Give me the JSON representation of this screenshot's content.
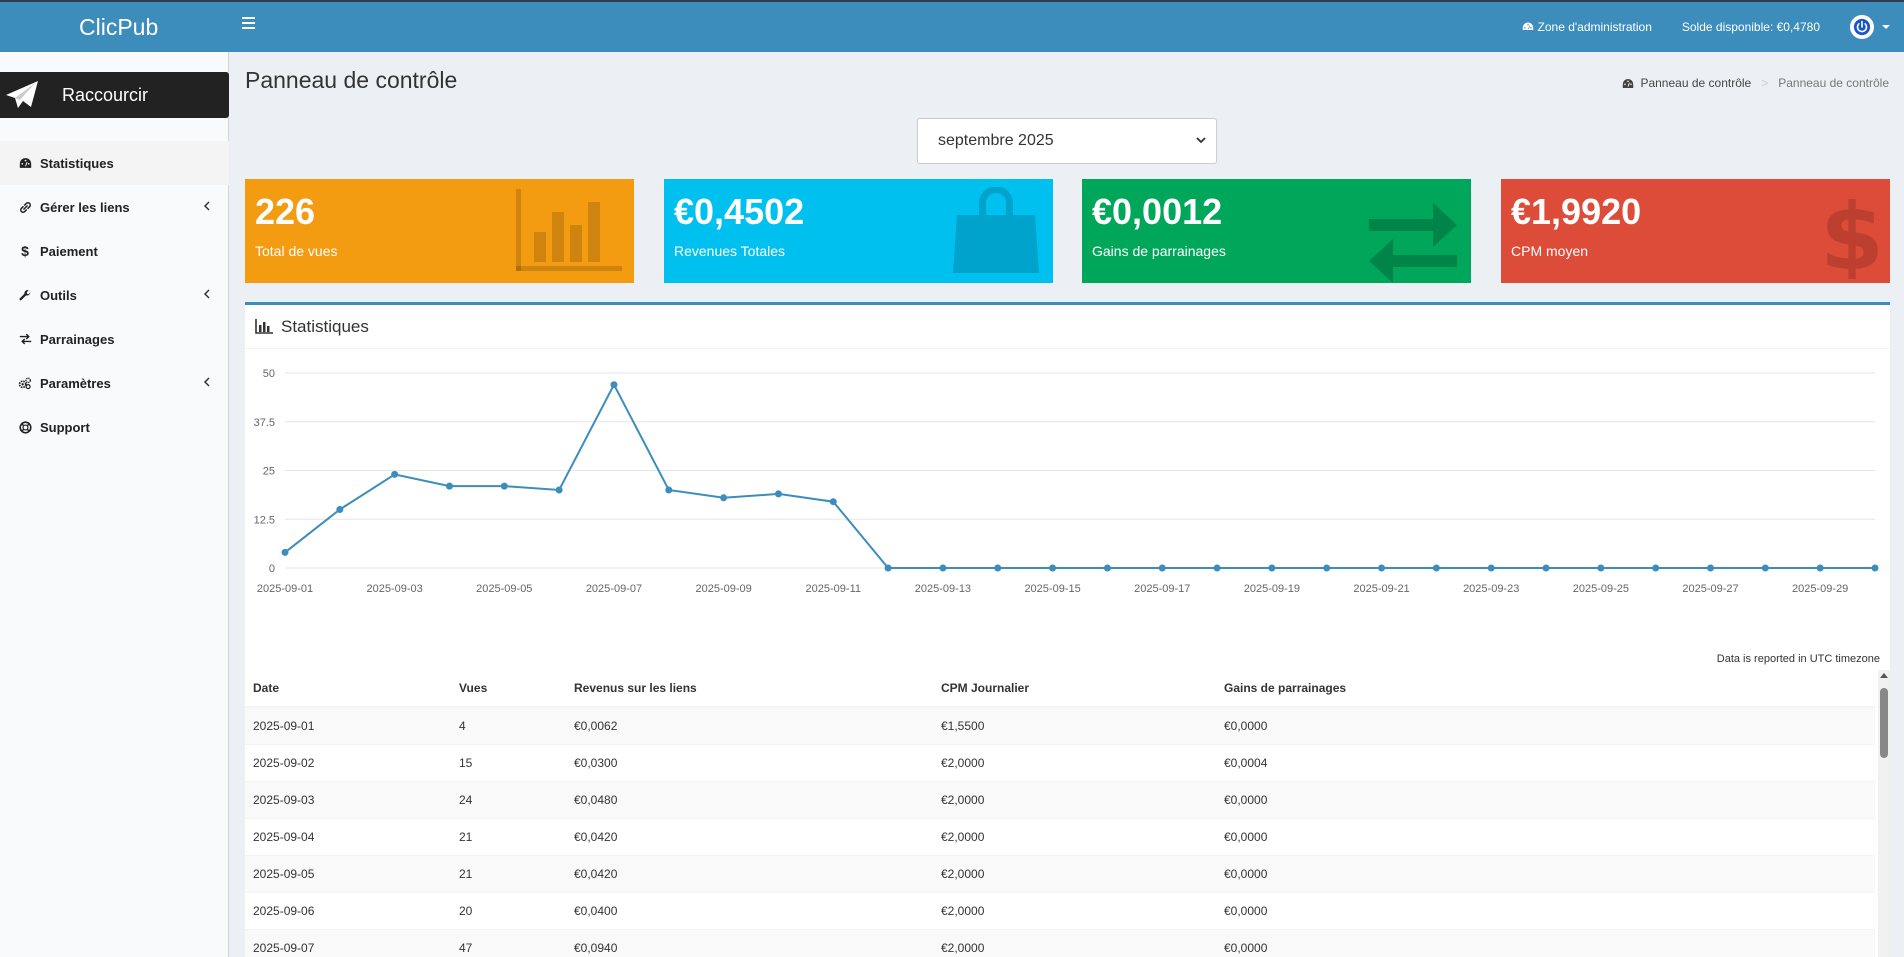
{
  "header": {
    "app_name": "ClicPub",
    "admin_zone": "Zone d'administration",
    "balance": "Solde disponible: €0,4780"
  },
  "sidebar": {
    "shorten_label": "Raccourcir",
    "items": [
      {
        "label": "Statistiques",
        "icon": "dashboard-icon",
        "active": true
      },
      {
        "label": "Gérer les liens",
        "icon": "link-icon",
        "expandable": true
      },
      {
        "label": "Paiement",
        "icon": "dollar-icon"
      },
      {
        "label": "Outils",
        "icon": "wrench-icon",
        "expandable": true
      },
      {
        "label": "Parrainages",
        "icon": "exchange-icon"
      },
      {
        "label": "Paramètres",
        "icon": "cogs-icon",
        "expandable": true
      },
      {
        "label": "Support",
        "icon": "lifebuoy-icon"
      }
    ]
  },
  "page": {
    "title": "Panneau de contrôle",
    "breadcrumb_home": "Panneau de contrôle",
    "breadcrumb_current": "Panneau de contrôle",
    "month_selected": "septembre 2025"
  },
  "boxes": [
    {
      "value": "226",
      "label": "Total de vues",
      "color": "#f39c12",
      "icon": "bar-chart-icon"
    },
    {
      "value": "€0,4502",
      "label": "Revenues Totales",
      "color": "#00c0ef",
      "icon": "shopping-bag-icon"
    },
    {
      "value": "€0,0012",
      "label": "Gains de parrainages",
      "color": "#00a65a",
      "icon": "exchange-icon"
    },
    {
      "value": "€1,9920",
      "label": "CPM moyen",
      "color": "#dd4b39",
      "icon": "dollar-icon"
    }
  ],
  "stats": {
    "title": "Statistiques",
    "utc_note": "Data is reported in UTC timezone"
  },
  "chart_data": {
    "type": "line",
    "title": "",
    "xlabel": "",
    "ylabel": "",
    "ylim": [
      0,
      50
    ],
    "yticks": [
      "0",
      "12.5",
      "25",
      "37.5",
      "50"
    ],
    "xticks": [
      "2025-09-01",
      "2025-09-03",
      "2025-09-05",
      "2025-09-07",
      "2025-09-09",
      "2025-09-11",
      "2025-09-13",
      "2025-09-15",
      "2025-09-17",
      "2025-09-19",
      "2025-09-21",
      "2025-09-23",
      "2025-09-25",
      "2025-09-27",
      "2025-09-29"
    ],
    "x": [
      "2025-09-01",
      "2025-09-02",
      "2025-09-03",
      "2025-09-04",
      "2025-09-05",
      "2025-09-06",
      "2025-09-07",
      "2025-09-08",
      "2025-09-09",
      "2025-09-10",
      "2025-09-11",
      "2025-09-12",
      "2025-09-13",
      "2025-09-14",
      "2025-09-15",
      "2025-09-16",
      "2025-09-17",
      "2025-09-18",
      "2025-09-19",
      "2025-09-20",
      "2025-09-21",
      "2025-09-22",
      "2025-09-23",
      "2025-09-24",
      "2025-09-25",
      "2025-09-26",
      "2025-09-27",
      "2025-09-28",
      "2025-09-29",
      "2025-09-30"
    ],
    "values": [
      4,
      15,
      24,
      21,
      21,
      20,
      47,
      20,
      18,
      19,
      17,
      0,
      0,
      0,
      0,
      0,
      0,
      0,
      0,
      0,
      0,
      0,
      0,
      0,
      0,
      0,
      0,
      0,
      0,
      0
    ],
    "color": "#3c8dbc",
    "grid": true
  },
  "table": {
    "headers": [
      "Date",
      "Vues",
      "Revenus sur les liens",
      "CPM Journalier",
      "Gains de parrainages"
    ],
    "rows": [
      [
        "2025-09-01",
        "4",
        "€0,0062",
        "€1,5500",
        "€0,0000"
      ],
      [
        "2025-09-02",
        "15",
        "€0,0300",
        "€2,0000",
        "€0,0004"
      ],
      [
        "2025-09-03",
        "24",
        "€0,0480",
        "€2,0000",
        "€0,0000"
      ],
      [
        "2025-09-04",
        "21",
        "€0,0420",
        "€2,0000",
        "€0,0000"
      ],
      [
        "2025-09-05",
        "21",
        "€0,0420",
        "€2,0000",
        "€0,0000"
      ],
      [
        "2025-09-06",
        "20",
        "€0,0400",
        "€2,0000",
        "€0,0000"
      ],
      [
        "2025-09-07",
        "47",
        "€0,0940",
        "€2,0000",
        "€0,0000"
      ]
    ]
  }
}
